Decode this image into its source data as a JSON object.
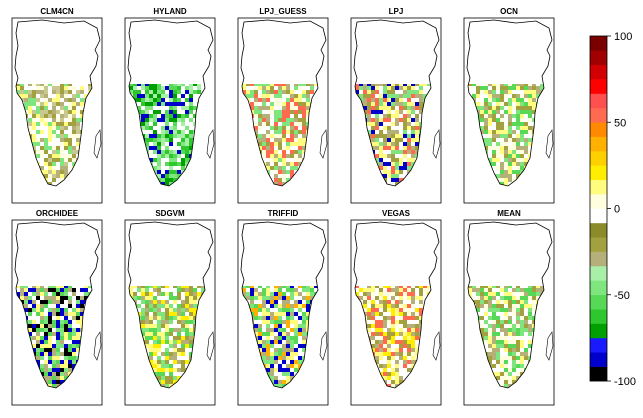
{
  "panels": [
    {
      "title": "CLM4CN"
    },
    {
      "title": "HYLAND"
    },
    {
      "title": "LPJ_GUESS"
    },
    {
      "title": "LPJ"
    },
    {
      "title": "OCN"
    },
    {
      "title": "ORCHIDEE"
    },
    {
      "title": "SDGVM"
    },
    {
      "title": "TRIFFID"
    },
    {
      "title": "VEGAS"
    },
    {
      "title": "MEAN"
    }
  ],
  "colorbar": {
    "ticks": [
      {
        "value": 100,
        "label": "100"
      },
      {
        "value": 50,
        "label": "50"
      },
      {
        "value": 0,
        "label": "0"
      },
      {
        "value": -50,
        "label": "-50"
      },
      {
        "value": -100,
        "label": "-100"
      }
    ],
    "min": -100,
    "max": 100,
    "colors": [
      "#000000",
      "#0000cc",
      "#1a1aff",
      "#00a000",
      "#2ec82e",
      "#57d957",
      "#7fe57f",
      "#a8efa8",
      "#b5b07a",
      "#a3a040",
      "#8b8b2a",
      "#ffffff",
      "#ffffe0",
      "#fffc80",
      "#ffee00",
      "#ffd000",
      "#ffb000",
      "#ff8a00",
      "#ff6a50",
      "#ff5050",
      "#ff0000",
      "#d20000",
      "#a00000",
      "#7a0000"
    ]
  }
}
